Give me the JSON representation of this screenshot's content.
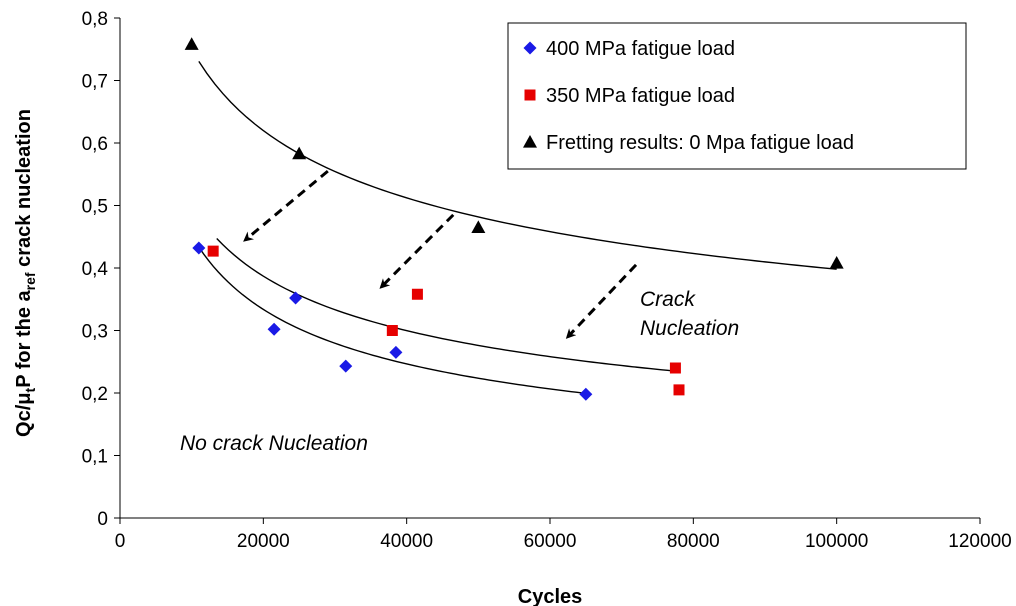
{
  "chart_data": {
    "type": "scatter",
    "xlabel": "Cycles",
    "ylabel_main": "Qc/μ",
    "ylabel_sub1": "t",
    "ylabel_mid": "P for the a",
    "ylabel_sub2": "ref",
    "ylabel_end": " crack nucleation",
    "xlim": [
      0,
      120000
    ],
    "ylim": [
      0,
      0.8
    ],
    "x_ticks": [
      0,
      20000,
      40000,
      60000,
      80000,
      100000,
      120000
    ],
    "x_tick_labels": [
      "0",
      "20000",
      "40000",
      "60000",
      "80000",
      "100000",
      "120000"
    ],
    "y_ticks": [
      0,
      0.1,
      0.2,
      0.3,
      0.4,
      0.5,
      0.6,
      0.7,
      0.8
    ],
    "y_tick_labels": [
      "0",
      "0,1",
      "0,2",
      "0,3",
      "0,4",
      "0,5",
      "0,6",
      "0,7",
      "0,8"
    ],
    "legend_position": "top-right",
    "grid": false,
    "series": [
      {
        "name": "400 MPa fatigue load",
        "marker": "diamond",
        "color": "#1a1ae6",
        "points": [
          [
            11000,
            0.432
          ],
          [
            21500,
            0.302
          ],
          [
            24500,
            0.352
          ],
          [
            31500,
            0.243
          ],
          [
            38500,
            0.265
          ],
          [
            65000,
            0.198
          ]
        ]
      },
      {
        "name": "350 MPa fatigue load",
        "marker": "square",
        "color": "#e60000",
        "points": [
          [
            13000,
            0.427
          ],
          [
            38000,
            0.3
          ],
          [
            41500,
            0.358
          ],
          [
            77500,
            0.24
          ],
          [
            78000,
            0.205
          ]
        ]
      },
      {
        "name": "Fretting results: 0 Mpa fatigue load",
        "marker": "triangle",
        "color": "#000000",
        "points": [
          [
            10000,
            0.758
          ],
          [
            25000,
            0.583
          ],
          [
            50000,
            0.465
          ],
          [
            100000,
            0.408
          ]
        ]
      }
    ],
    "trend_curves": [
      {
        "series": 0,
        "x_range": [
          11000,
          65000
        ]
      },
      {
        "series": 1,
        "x_range": [
          13500,
          78000
        ]
      },
      {
        "series": 2,
        "x_range": [
          11000,
          100000
        ]
      }
    ],
    "arrows": [
      {
        "from": [
          29000,
          0.555
        ],
        "to": [
          17500,
          0.445
        ]
      },
      {
        "from": [
          46500,
          0.485
        ],
        "to": [
          36500,
          0.37
        ]
      },
      {
        "from": [
          72000,
          0.405
        ],
        "to": [
          62500,
          0.29
        ]
      }
    ],
    "annotations": [
      {
        "text_lines": [
          "Crack",
          "Nucleation"
        ]
      },
      {
        "text_lines": [
          "No crack Nucleation"
        ]
      }
    ]
  }
}
